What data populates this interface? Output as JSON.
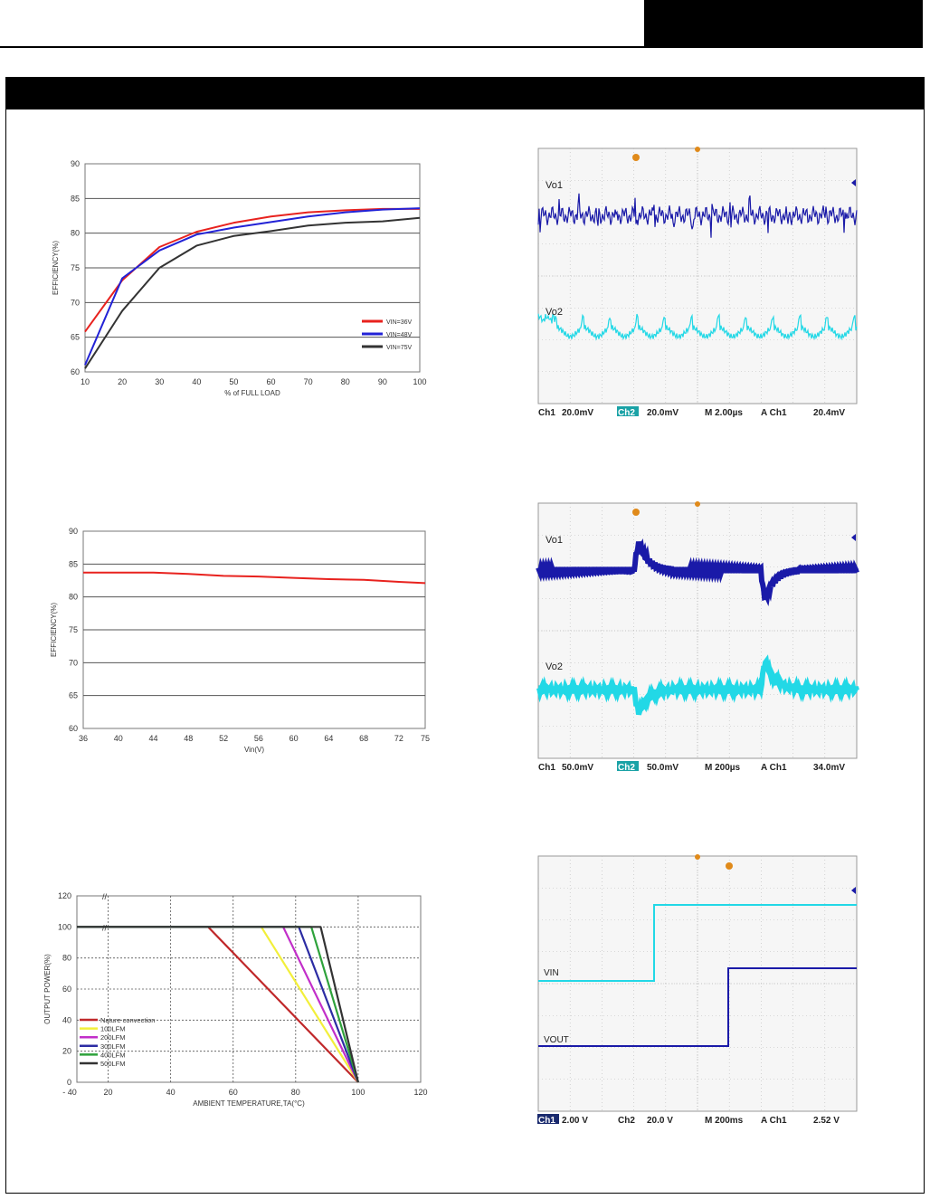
{
  "chart_data": [
    {
      "type": "line",
      "xlabel": "% of FULL LOAD",
      "ylabel": "EFFICIENCY(%)",
      "xlim": [
        10,
        100
      ],
      "ylim": [
        60,
        90
      ],
      "xticks": [
        10,
        20,
        30,
        40,
        50,
        60,
        70,
        80,
        90,
        100
      ],
      "yticks": [
        60,
        65,
        70,
        75,
        80,
        85,
        90
      ],
      "grid": "horizontal",
      "legend_position": "bottom-right",
      "series": [
        {
          "name": "VIN=36V",
          "color": "#e8221e",
          "x": [
            10,
            20,
            30,
            40,
            50,
            60,
            70,
            80,
            90,
            100
          ],
          "values": [
            65.8,
            73.2,
            78,
            80.2,
            81.5,
            82.4,
            83,
            83.3,
            83.5,
            83.5
          ]
        },
        {
          "name": "VIN=48V",
          "color": "#2222d6",
          "x": [
            10,
            20,
            30,
            40,
            50,
            60,
            70,
            80,
            90,
            100
          ],
          "values": [
            61,
            73.5,
            77.5,
            79.8,
            80.8,
            81.6,
            82.4,
            83,
            83.4,
            83.6
          ]
        },
        {
          "name": "VIN=75V",
          "color": "#333333",
          "x": [
            10,
            20,
            30,
            40,
            50,
            60,
            70,
            80,
            90,
            100
          ],
          "values": [
            60.5,
            68.8,
            75,
            78.2,
            79.6,
            80.3,
            81.1,
            81.5,
            81.7,
            82.2
          ]
        }
      ]
    },
    {
      "type": "line",
      "xlabel": "Vin(V)",
      "ylabel": "EFFICIENCY(%)",
      "xlim": [
        36,
        75
      ],
      "ylim": [
        60,
        90
      ],
      "xticks": [
        36,
        40,
        44,
        48,
        52,
        56,
        60,
        64,
        68,
        72,
        75
      ],
      "yticks": [
        60,
        65,
        70,
        75,
        80,
        85,
        90
      ],
      "grid": "horizontal",
      "series": [
        {
          "name": "",
          "color": "#e8221e",
          "x": [
            36,
            40,
            44,
            48,
            52,
            56,
            60,
            64,
            68,
            72,
            75
          ],
          "values": [
            83.7,
            83.7,
            83.7,
            83.5,
            83.2,
            83.1,
            82.9,
            82.7,
            82.6,
            82.3,
            82.1
          ]
        }
      ]
    },
    {
      "type": "line",
      "xlabel": "AMBIENT TEMPERATURE,TA(°C)",
      "ylabel": "OUTPUT POWER(%)",
      "xlim": [
        -40,
        120
      ],
      "ylim": [
        0,
        120
      ],
      "xticks": [
        -40,
        20,
        40,
        60,
        80,
        100,
        120
      ],
      "yticks": [
        0,
        20,
        40,
        60,
        80,
        100,
        120
      ],
      "grid": "dashed",
      "legend_position": "bottom-left",
      "series": [
        {
          "name": "Nature convection",
          "color": "#c0282a",
          "x": [
            -40,
            52,
            100
          ],
          "values": [
            100,
            100,
            0
          ]
        },
        {
          "name": "100LFM",
          "color": "#f2ef3a",
          "x": [
            -40,
            69,
            100
          ],
          "values": [
            100,
            100,
            0
          ]
        },
        {
          "name": "200LFM",
          "color": "#c22ec9",
          "x": [
            -40,
            76,
            100
          ],
          "values": [
            100,
            100,
            0
          ]
        },
        {
          "name": "300LFM",
          "color": "#2c2ca3",
          "x": [
            -40,
            81,
            100
          ],
          "values": [
            100,
            100,
            0
          ]
        },
        {
          "name": "400LFM",
          "color": "#2ea23b",
          "x": [
            -40,
            85,
            100
          ],
          "values": [
            100,
            100,
            0
          ]
        },
        {
          "name": "500LFM",
          "color": "#333333",
          "x": [
            -40,
            88,
            100
          ],
          "values": [
            100,
            100,
            0
          ]
        }
      ]
    }
  ],
  "legend1": [
    "VIN=36V",
    "VIN=48V",
    "VIN=75V"
  ],
  "legend3": [
    "Nature convection",
    "100LFM",
    "200LFM",
    "300LFM",
    "400LFM",
    "500LFM"
  ],
  "scopes": [
    {
      "labels": [
        "Vo1",
        "Vo2"
      ],
      "status": {
        "ch1": "Ch1",
        "ch1_scale": "20.0mV",
        "ch2": "Ch2",
        "ch2_scale": "20.0mV",
        "timebase": "M 2.00µs",
        "trig": "A  Ch1",
        "trig_level": "20.4mV"
      }
    },
    {
      "labels": [
        "Vo1",
        "Vo2"
      ],
      "status": {
        "ch1": "Ch1",
        "ch1_scale": "50.0mV",
        "ch2": "Ch2",
        "ch2_scale": "50.0mV",
        "timebase": "M 200µs",
        "trig": "A  Ch1",
        "trig_level": "34.0mV"
      }
    },
    {
      "labels": [
        "VIN",
        "VOUT"
      ],
      "status": {
        "ch1": "Ch1",
        "ch1_scale": "2.00 V",
        "ch2": "Ch2",
        "ch2_scale": "20.0 V",
        "timebase": "M 200ms",
        "trig": "A  Ch1",
        "trig_level": "2.52 V"
      }
    }
  ],
  "colors": {
    "scope_bg": "#f6f6f6",
    "scope_ch1": "#1a1aa8",
    "scope_ch2": "#22d8e6",
    "marker": "#e08a1a",
    "status_bg": "#1a2a6e"
  }
}
